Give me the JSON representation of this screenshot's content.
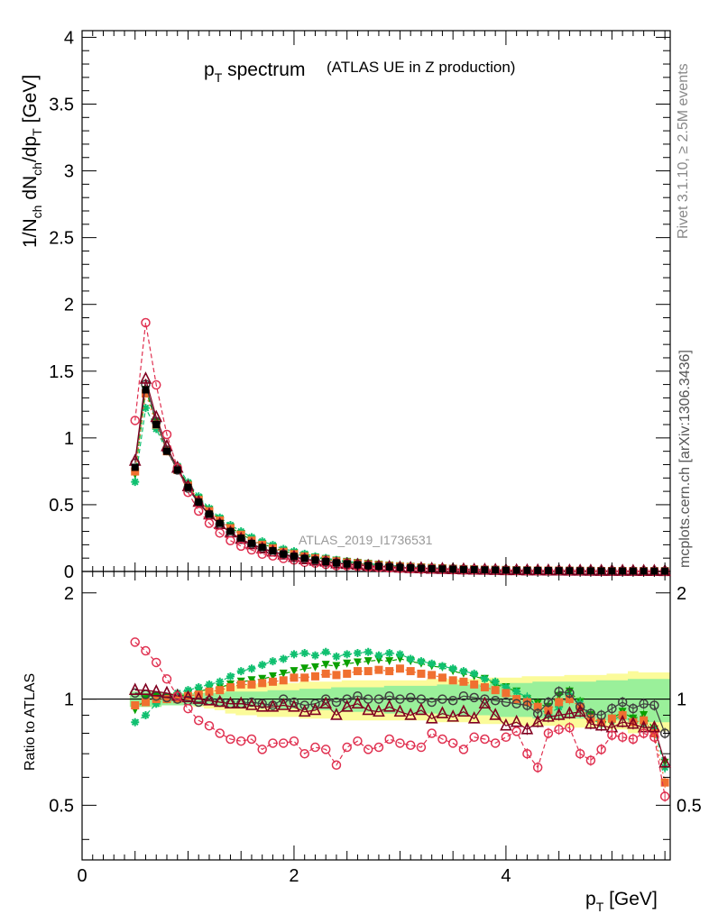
{
  "chart_data": {
    "type": "line",
    "title": "p",
    "title_sub": "T",
    "title_rest": " spectrum",
    "subtitle": "(ATLAS UE in Z production)",
    "analysis_label": "ATLAS_2019_I1736531",
    "side_label_top": "Rivet 3.1.10, ≥ 2.5M events",
    "side_label_bottom": "mcplots.cern.ch [arXiv:1306.3436]",
    "xlabel": "p",
    "xlabel_sub": "T",
    "xlabel_unit": " [GeV]",
    "ylabel_parts": [
      "1/N",
      "ch",
      " dN",
      "ch",
      "/dp",
      "T",
      " [GeV]"
    ],
    "ratio_ylabel": "Ratio to ATLAS",
    "xlim": [
      0,
      5.55
    ],
    "ylim": [
      0,
      4.05
    ],
    "ratio_ylim": [
      0.35,
      2.3
    ],
    "x_ticks": [
      "0",
      "2",
      "4"
    ],
    "y_ticks": [
      "0",
      "0.5",
      "1",
      "1.5",
      "2",
      "2.5",
      "3",
      "3.5",
      "4"
    ],
    "ratio_ticks": [
      "0.5",
      "1",
      "2"
    ],
    "x": [
      0.5,
      0.6,
      0.7,
      0.8,
      0.9,
      1.0,
      1.1,
      1.2,
      1.3,
      1.4,
      1.5,
      1.6,
      1.7,
      1.8,
      1.9,
      2.0,
      2.1,
      2.2,
      2.3,
      2.4,
      2.5,
      2.6,
      2.7,
      2.8,
      2.9,
      3.0,
      3.1,
      3.2,
      3.3,
      3.4,
      3.5,
      3.6,
      3.7,
      3.8,
      3.9,
      4.0,
      4.1,
      4.2,
      4.3,
      4.4,
      4.5,
      4.6,
      4.7,
      4.8,
      4.9,
      5.0,
      5.1,
      5.2,
      5.3,
      5.4,
      5.5
    ],
    "data_values": [
      0.78,
      1.36,
      1.1,
      0.9,
      0.76,
      0.63,
      0.52,
      0.43,
      0.36,
      0.3,
      0.25,
      0.21,
      0.18,
      0.155,
      0.13,
      0.113,
      0.098,
      0.085,
      0.074,
      0.065,
      0.057,
      0.05,
      0.044,
      0.039,
      0.034,
      0.03,
      0.027,
      0.024,
      0.021,
      0.019,
      0.017,
      0.015,
      0.0135,
      0.012,
      0.011,
      0.0098,
      0.0088,
      0.0079,
      0.0071,
      0.0064,
      0.0058,
      0.0052,
      0.0047,
      0.0043,
      0.0039,
      0.0035,
      0.0032,
      0.0029,
      0.0026,
      0.0024,
      0.0022
    ],
    "band_inner": [
      0.05,
      0.05,
      0.05,
      0.04,
      0.04,
      0.04,
      0.04,
      0.04,
      0.04,
      0.05,
      0.05,
      0.05,
      0.05,
      0.06,
      0.06,
      0.06,
      0.07,
      0.07,
      0.07,
      0.08,
      0.08,
      0.08,
      0.08,
      0.08,
      0.09,
      0.09,
      0.09,
      0.09,
      0.09,
      0.1,
      0.1,
      0.1,
      0.1,
      0.1,
      0.11,
      0.11,
      0.11,
      0.11,
      0.12,
      0.12,
      0.12,
      0.12,
      0.12,
      0.12,
      0.13,
      0.13,
      0.13,
      0.14,
      0.14,
      0.14,
      0.14
    ],
    "band_outer": [
      0.05,
      0.05,
      0.05,
      0.04,
      0.04,
      0.04,
      0.05,
      0.06,
      0.07,
      0.09,
      0.1,
      0.1,
      0.11,
      0.11,
      0.11,
      0.11,
      0.12,
      0.12,
      0.12,
      0.12,
      0.13,
      0.13,
      0.13,
      0.13,
      0.13,
      0.13,
      0.13,
      0.13,
      0.14,
      0.14,
      0.14,
      0.14,
      0.14,
      0.15,
      0.15,
      0.15,
      0.15,
      0.16,
      0.16,
      0.16,
      0.16,
      0.17,
      0.17,
      0.17,
      0.17,
      0.18,
      0.18,
      0.2,
      0.19,
      0.19,
      0.19
    ],
    "series": [
      {
        "name": "MC green triangles",
        "color": "#0aa000",
        "marker": "tri-down",
        "dash": "dashed",
        "ratio": [
          0.93,
          1.0,
          1.02,
          1.01,
          1.02,
          1.03,
          1.05,
          1.07,
          1.08,
          1.1,
          1.12,
          1.13,
          1.14,
          1.16,
          1.18,
          1.2,
          1.22,
          1.23,
          1.25,
          1.24,
          1.26,
          1.27,
          1.28,
          1.29,
          1.28,
          1.3,
          1.28,
          1.26,
          1.24,
          1.23,
          1.2,
          1.18,
          1.16,
          1.14,
          1.1,
          1.08,
          1.05,
          1.0,
          0.97,
          0.95,
          1.02,
          1.05,
          0.98,
          0.9,
          0.85,
          0.88,
          0.92,
          0.88,
          0.9,
          0.82,
          0.66
        ]
      },
      {
        "name": "MC teal stars",
        "color": "#10c070",
        "marker": "star",
        "dash": "dashed",
        "ratio": [
          0.86,
          0.9,
          0.97,
          1.0,
          1.04,
          1.06,
          1.08,
          1.1,
          1.12,
          1.16,
          1.2,
          1.22,
          1.25,
          1.28,
          1.3,
          1.34,
          1.35,
          1.33,
          1.36,
          1.32,
          1.34,
          1.35,
          1.36,
          1.33,
          1.35,
          1.34,
          1.3,
          1.28,
          1.26,
          1.24,
          1.22,
          1.2,
          1.18,
          1.14,
          1.12,
          1.08,
          1.05,
          1.01,
          0.95,
          0.9,
          0.95,
          1.02,
          0.97,
          0.88,
          0.85,
          0.87,
          0.9,
          0.86,
          0.85,
          0.82,
          0.64
        ]
      },
      {
        "name": "MC orange squares",
        "color": "#f07030",
        "marker": "square",
        "dash": "dotted",
        "ratio": [
          0.96,
          0.98,
          1.0,
          1.0,
          1.0,
          1.02,
          1.03,
          1.05,
          1.06,
          1.08,
          1.1,
          1.1,
          1.11,
          1.12,
          1.13,
          1.15,
          1.15,
          1.16,
          1.18,
          1.17,
          1.18,
          1.2,
          1.2,
          1.21,
          1.2,
          1.22,
          1.2,
          1.18,
          1.17,
          1.15,
          1.13,
          1.12,
          1.1,
          1.08,
          1.06,
          1.04,
          1.0,
          0.98,
          0.95,
          0.93,
          0.98,
          1.0,
          0.95,
          0.88,
          0.86,
          0.88,
          0.9,
          0.86,
          0.87,
          0.8,
          0.58
        ]
      },
      {
        "name": "MC dark circles",
        "color": "#404040",
        "marker": "circle-open",
        "dash": "solid",
        "ratio": [
          1.04,
          1.03,
          1.02,
          1.01,
          1.0,
          0.99,
          0.98,
          0.99,
          0.98,
          0.97,
          0.97,
          0.98,
          0.97,
          0.96,
          1.0,
          0.98,
          0.96,
          0.97,
          1.0,
          0.98,
          1.0,
          1.02,
          1.0,
          1.0,
          1.02,
          1.0,
          1.01,
          1.0,
          0.98,
          1.0,
          0.99,
          1.02,
          1.01,
          1.0,
          0.99,
          0.98,
          0.97,
          0.96,
          0.91,
          0.98,
          1.05,
          1.04,
          0.95,
          0.91,
          0.9,
          0.94,
          0.98,
          0.94,
          0.97,
          0.96,
          0.8
        ]
      },
      {
        "name": "MC maroon triangles",
        "color": "#800020",
        "marker": "tri-up-open",
        "dash": "solid",
        "ratio": [
          1.06,
          1.06,
          1.05,
          1.04,
          1.02,
          1.01,
          1.0,
          0.99,
          0.98,
          0.97,
          0.97,
          0.96,
          0.95,
          0.95,
          0.96,
          0.95,
          0.92,
          0.93,
          0.97,
          0.9,
          0.95,
          0.97,
          0.93,
          0.92,
          0.95,
          0.92,
          0.9,
          0.93,
          0.88,
          0.91,
          0.89,
          0.92,
          0.88,
          0.97,
          0.9,
          0.84,
          0.86,
          0.82,
          0.86,
          0.89,
          0.9,
          0.91,
          0.92,
          0.85,
          0.84,
          0.83,
          0.86,
          0.85,
          0.83,
          0.83,
          0.66
        ]
      },
      {
        "name": "MC pink circles",
        "color": "#e03050",
        "marker": "circle-open",
        "dash": "dashed",
        "ratio": [
          1.45,
          1.37,
          1.27,
          1.14,
          1.02,
          0.94,
          0.87,
          0.84,
          0.8,
          0.77,
          0.76,
          0.77,
          0.72,
          0.75,
          0.75,
          0.76,
          0.7,
          0.73,
          0.72,
          0.65,
          0.73,
          0.76,
          0.72,
          0.73,
          0.77,
          0.75,
          0.74,
          0.73,
          0.8,
          0.77,
          0.75,
          0.72,
          0.78,
          0.77,
          0.75,
          0.78,
          0.81,
          0.7,
          0.64,
          0.8,
          0.82,
          0.83,
          0.7,
          0.67,
          0.72,
          0.79,
          0.78,
          0.77,
          0.8,
          0.78,
          0.53
        ]
      }
    ]
  }
}
